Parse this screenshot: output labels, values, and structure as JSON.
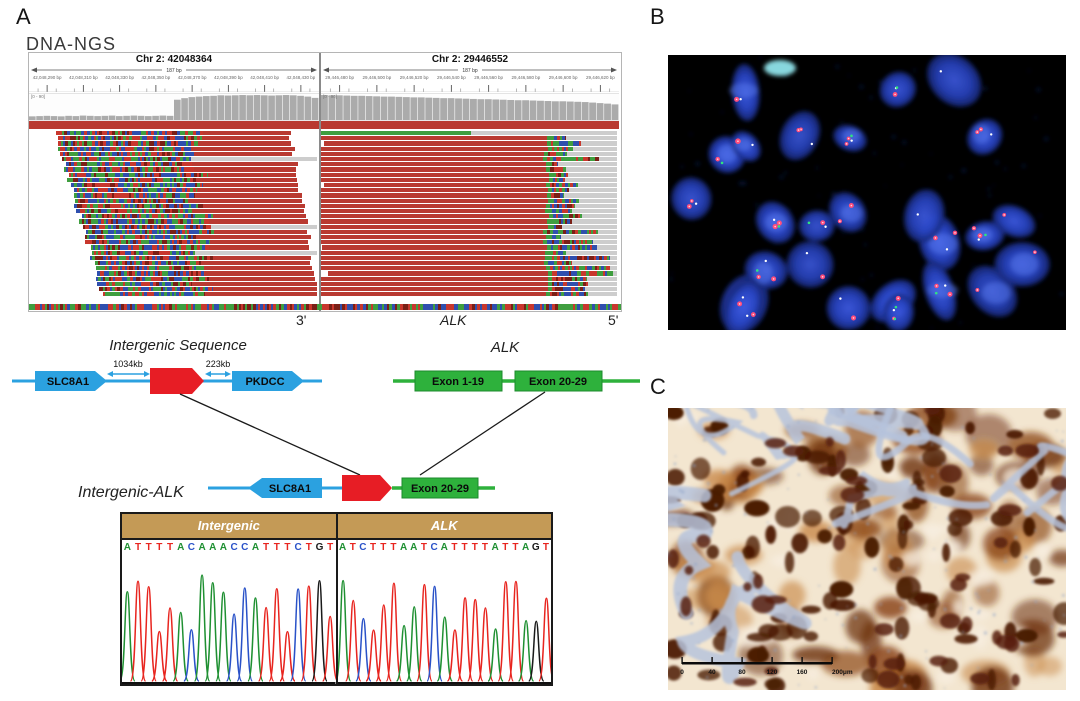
{
  "figure": {
    "panel_a_label": "A",
    "panel_b_label": "B",
    "panel_c_label": "C",
    "method_title": "DNA-NGS"
  },
  "igv": {
    "left": {
      "title": "Chr 2: 42048364",
      "span": "187 bp",
      "coverage_range": "[0 - 90]",
      "ticks": [
        "42,048,290 bp",
        "42,048,310 bp",
        "42,048,330 bp",
        "42,048,350 bp",
        "42,048,370 bp",
        "42,048,390 bp",
        "42,048,410 bp",
        "42,048,430 bp"
      ],
      "coverage": [
        0.14,
        0.15,
        0.16,
        0.15,
        0.14,
        0.16,
        0.15,
        0.17,
        0.16,
        0.15,
        0.16,
        0.17,
        0.15,
        0.16,
        0.17,
        0.16,
        0.15,
        0.16,
        0.17,
        0.16,
        0.78,
        0.84,
        0.88,
        0.9,
        0.92,
        0.93,
        0.95,
        0.94,
        0.95,
        0.96,
        0.95,
        0.96,
        0.95,
        0.94,
        0.95,
        0.96,
        0.95,
        0.93,
        0.9,
        0.85
      ]
    },
    "right": {
      "title": "Chr 2: 29446552",
      "span": "187 bp",
      "coverage_range": "[0 - 90]",
      "ticks": [
        "29,446,480 bp",
        "29,446,500 bp",
        "29,446,520 bp",
        "29,446,540 bp",
        "29,446,560 bp",
        "29,446,580 bp",
        "29,446,600 bp",
        "29,446,620 bp"
      ],
      "coverage": [
        0.96,
        0.95,
        0.95,
        0.94,
        0.93,
        0.93,
        0.92,
        0.91,
        0.9,
        0.9,
        0.89,
        0.88,
        0.87,
        0.87,
        0.86,
        0.85,
        0.84,
        0.84,
        0.83,
        0.82,
        0.81,
        0.8,
        0.8,
        0.79,
        0.78,
        0.77,
        0.76,
        0.76,
        0.75,
        0.74,
        0.73,
        0.72,
        0.72,
        0.71,
        0.7,
        0.69,
        0.67,
        0.65,
        0.63,
        0.6
      ]
    },
    "strand": {
      "three_prime": "3'",
      "gene": "ALK",
      "five_prime": "5'"
    },
    "colors": {
      "read_red": "#b93a31",
      "read_green": "#3f9e3f",
      "read_gray": "#cdcdcd",
      "coverage_gray": "#ababab",
      "mismatch_palette": [
        "#c8372d",
        "#3f9e3f",
        "#2f4fae",
        "#7a1f16",
        "#3f9e3f",
        "#c8372d",
        "#2f4fae"
      ]
    }
  },
  "diagram": {
    "intergenic_title": "Intergenic Sequence",
    "gene_left_1": "SLC8A1",
    "gene_left_2": "PKDCC",
    "distance_1": "1034kb",
    "distance_2": "223kb",
    "alk_title": "ALK",
    "alk_exon_1": "Exon 1-19",
    "alk_exon_2": "Exon 20-29",
    "fusion_label": "Intergenic-ALK",
    "fusion_gene_1": "SLC8A1",
    "fusion_gene_2": "Exon 20-29",
    "colors": {
      "blue": "#2ba1e0",
      "red": "#e71d25",
      "green": "#2eb13c"
    }
  },
  "sanger": {
    "header_bg": "#c49a56",
    "columns": [
      {
        "header": "Intergenic",
        "sequence": "ATTTTACAAACCATTTCTGT"
      },
      {
        "header": "ALK",
        "sequence": "ATCTTTAATCATTTTATTAGT"
      }
    ],
    "base_colors": {
      "A": "#1f9032",
      "T": "#e8251f",
      "C": "#2a52c8",
      "G": "#1a1a1a"
    }
  },
  "fish": {
    "background": "#000000",
    "nucleus_core": "#3d5ae0",
    "nucleus_edge": "#15246f",
    "signal_red": "#ff4e7d",
    "signal_green": "#2fe57f",
    "signal_white": "#ffffff",
    "cyan_debris": "#8fe3ea",
    "nuclei_count": 26
  },
  "ihc": {
    "background": "#f3e6d0",
    "tissue_dark": "#4a1a06",
    "tissue_mid": "#8a4516",
    "tissue_light": "#c98a4a",
    "stroma_blue": "#b6c3dc",
    "scale_ticks": [
      "0",
      "40",
      "80",
      "120",
      "160",
      "200μm"
    ]
  }
}
